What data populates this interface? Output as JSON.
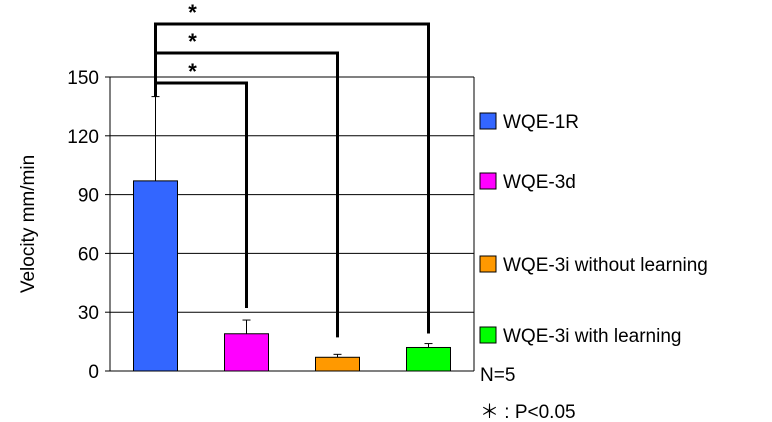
{
  "chart_data": {
    "type": "bar",
    "title": "",
    "xlabel": "",
    "ylabel": "Velocity mm/min",
    "ylim": [
      0,
      150
    ],
    "yticks": [
      0,
      30,
      60,
      90,
      120,
      150
    ],
    "grid": true,
    "legend_position": "right",
    "series": [
      {
        "name": "WQE-1R",
        "value": 97,
        "error": 43,
        "color": "#3366ff"
      },
      {
        "name": "WQE-3d",
        "value": 19,
        "error": 7,
        "color": "#ff00ff"
      },
      {
        "name": "WQE-3i without learning",
        "value": 7,
        "error": 1.5,
        "color": "#ff9900"
      },
      {
        "name": "WQE-3i with learning",
        "value": 12,
        "error": 2,
        "color": "#00ff00"
      }
    ],
    "significance": [
      {
        "from": 0,
        "to": 1,
        "label": "*"
      },
      {
        "from": 0,
        "to": 2,
        "label": "*"
      },
      {
        "from": 0,
        "to": 3,
        "label": "*"
      }
    ],
    "notes": {
      "n": "N=5",
      "significance_key": "＊ : P<0.05"
    }
  }
}
